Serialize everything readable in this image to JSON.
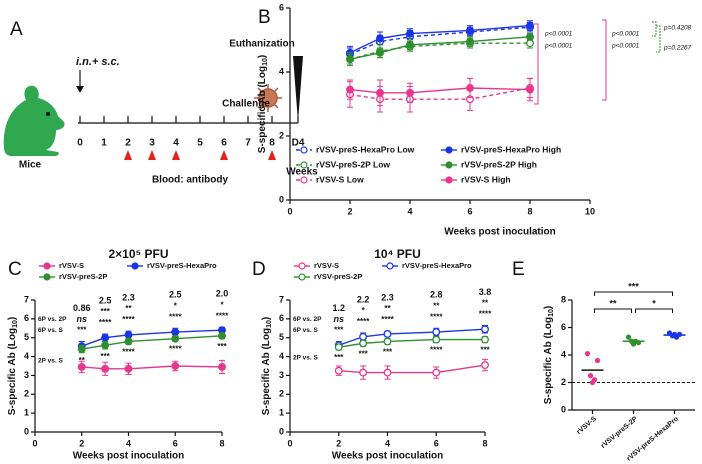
{
  "panels": [
    "A",
    "B",
    "C",
    "D",
    "E"
  ],
  "timeline": {
    "route": "i.n.+ s.c.",
    "subject": "Mice",
    "weeks": [
      "0",
      "1",
      "2",
      "3",
      "4",
      "5",
      "6",
      "7",
      "8",
      "D4"
    ],
    "unit": "Weeks",
    "challenge": "Challenge",
    "end": "Euthanization",
    "blood": "Blood: antibody",
    "blood_draws": [
      2,
      3,
      4,
      6,
      8
    ],
    "draw_color": "#e8201c"
  },
  "chart_data": [
    {
      "type": "line",
      "x_label": "Weeks post inoculation",
      "y_label": [
        {
          "text": "S-specific Ab (Log"
        },
        {
          "text": "10",
          "sub": true
        },
        {
          "text": ")"
        }
      ],
      "x": [
        2,
        3,
        4,
        6,
        8
      ],
      "xlim": [
        0,
        10
      ],
      "xticks": [
        0,
        2,
        4,
        6,
        8,
        10
      ],
      "ylim": [
        0,
        6
      ],
      "yticks": [
        0,
        2,
        4,
        6
      ],
      "legend": "lower left",
      "series": [
        {
          "name": "rVSV-preS-HexaPro Low",
          "color": "#1a35e6",
          "marker": "open",
          "dashed": true,
          "values": [
            4.55,
            4.95,
            5.1,
            5.25,
            5.4
          ],
          "errors": [
            0.2,
            0.2,
            0.2,
            0.15,
            0.15
          ]
        },
        {
          "name": "rVSV-preS-HexaPro High",
          "color": "#1a35e6",
          "marker": "filled",
          "dashed": false,
          "values": [
            4.6,
            5.05,
            5.2,
            5.3,
            5.45
          ],
          "errors": [
            0.2,
            0.2,
            0.15,
            0.15,
            0.15
          ]
        },
        {
          "name": "rVSV-preS-2P Low",
          "color": "#2f8f2f",
          "marker": "open",
          "dashed": true,
          "values": [
            4.4,
            4.65,
            4.8,
            4.9,
            4.9
          ],
          "errors": [
            0.2,
            0.2,
            0.15,
            0.15,
            0.15
          ]
        },
        {
          "name": "rVSV-preS-2P High",
          "color": "#2f8f2f",
          "marker": "filled",
          "dashed": false,
          "values": [
            4.4,
            4.6,
            4.85,
            4.95,
            5.1
          ],
          "errors": [
            0.15,
            0.15,
            0.15,
            0.15,
            0.1
          ]
        },
        {
          "name": "rVSV-S Low",
          "color": "#e8368f",
          "marker": "open",
          "dashed": true,
          "values": [
            3.3,
            3.15,
            3.15,
            3.15,
            3.5
          ],
          "errors": [
            0.4,
            0.4,
            0.4,
            0.35,
            0.3
          ]
        },
        {
          "name": "rVSV-S High",
          "color": "#e8368f",
          "marker": "filled",
          "dashed": false,
          "values": [
            3.45,
            3.35,
            3.35,
            3.5,
            3.45
          ],
          "errors": [
            0.3,
            0.4,
            0.3,
            0.3,
            0.35
          ]
        }
      ],
      "annotations": [
        {
          "text": "p<0.0001",
          "color": "#e8368f"
        },
        {
          "text": "p<0.0001",
          "color": "#e8368f"
        },
        {
          "text": "p<0.0001",
          "color": "#e8368f"
        },
        {
          "text": "p<0.0001",
          "color": "#e8368f"
        },
        {
          "text": "p=0.4208",
          "color": "#2f8f2f"
        },
        {
          "text": "p=0.2267",
          "color": "#2f8f2f"
        }
      ]
    },
    {
      "type": "line",
      "title": "2×10⁵ PFU",
      "x_label": "Weeks post inoculation",
      "y_label": [
        {
          "text": "S-specific Ab (Log"
        },
        {
          "text": "10",
          "sub": true
        },
        {
          "text": ")"
        }
      ],
      "x": [
        2,
        3,
        4,
        6,
        8
      ],
      "xlim": [
        0,
        8
      ],
      "xticks": [
        0,
        2,
        4,
        6,
        8
      ],
      "ylim": [
        0,
        7
      ],
      "yticks": [
        0,
        1,
        2,
        3,
        4,
        5,
        6,
        7
      ],
      "legend": "top",
      "marker": "filled",
      "series": [
        {
          "name": "rVSV-S",
          "color": "#e8368f",
          "values": [
            3.45,
            3.35,
            3.35,
            3.5,
            3.45
          ],
          "errors": [
            0.3,
            0.35,
            0.3,
            0.25,
            0.35
          ]
        },
        {
          "name": "rVSV-preS-HexaPro",
          "color": "#1a35e6",
          "values": [
            4.55,
            5.0,
            5.15,
            5.3,
            5.4
          ],
          "errors": [
            0.25,
            0.2,
            0.2,
            0.2,
            0.15
          ]
        },
        {
          "name": "rVSV-preS-2P",
          "color": "#2f8f2f",
          "values": [
            4.4,
            4.6,
            4.8,
            4.95,
            5.1
          ],
          "errors": [
            0.2,
            0.2,
            0.15,
            0.15,
            0.15
          ]
        }
      ],
      "fold_change": {
        "color": "#7d3c98",
        "values": [
          0.86,
          2.5,
          2.3,
          2.5,
          2
        ],
        "value_labels": [
          "0.86",
          "2.5",
          "2.3",
          "2.5",
          "2.0"
        ]
      },
      "comparisons": [
        {
          "label": "6P vs. 2P",
          "color": "#7d3c98",
          "marks": [
            "ns",
            "***",
            "**",
            "*",
            "*"
          ]
        },
        {
          "label": "6P vs. S",
          "color": "#1a35e6",
          "marks": [
            "***",
            "****",
            "****",
            "****",
            "****"
          ]
        },
        {
          "label": "2P vs. S",
          "color": "#2f8f2f",
          "marks": [
            "**",
            "***",
            "****",
            "****",
            "***"
          ]
        }
      ]
    },
    {
      "type": "line",
      "title": "10⁴ PFU",
      "x_label": "Weeks post inoculation",
      "y_label": [
        {
          "text": "S-specific Ab (Log"
        },
        {
          "text": "10",
          "sub": true
        },
        {
          "text": ")"
        }
      ],
      "x": [
        2,
        3,
        4,
        6,
        8
      ],
      "xlim": [
        0,
        8
      ],
      "xticks": [
        0,
        2,
        4,
        6,
        8
      ],
      "ylim": [
        0,
        7
      ],
      "yticks": [
        0,
        1,
        2,
        3,
        4,
        5,
        6,
        7
      ],
      "legend": "top",
      "marker": "open",
      "series": [
        {
          "name": "rVSV-S",
          "color": "#e8368f",
          "values": [
            3.25,
            3.15,
            3.15,
            3.15,
            3.55
          ],
          "errors": [
            0.25,
            0.35,
            0.35,
            0.3,
            0.3
          ]
        },
        {
          "name": "rVSV-preS-HexaPro",
          "color": "#1a35e6",
          "values": [
            4.6,
            5.05,
            5.2,
            5.3,
            5.45
          ],
          "errors": [
            0.2,
            0.2,
            0.15,
            0.2,
            0.2
          ]
        },
        {
          "name": "rVSV-preS-2P",
          "color": "#2f8f2f",
          "values": [
            4.5,
            4.7,
            4.8,
            4.9,
            4.9
          ],
          "errors": [
            0.15,
            0.15,
            0.15,
            0.15,
            0.15
          ]
        }
      ],
      "fold_change": {
        "color": "#7d3c98",
        "values": [
          1.2,
          2.2,
          2.3,
          2.8,
          3.8
        ]
      },
      "comparisons": [
        {
          "label": "6P vs. 2P",
          "color": "#7d3c98",
          "marks": [
            "ns",
            "*",
            "**",
            "**",
            "**"
          ]
        },
        {
          "label": "6P vs. S",
          "color": "#1a35e6",
          "marks": [
            "***",
            "****",
            "****",
            "****",
            "****"
          ]
        },
        {
          "label": "2P vs. S",
          "color": "#2f8f2f",
          "marks": [
            "***",
            "***",
            "***",
            "****",
            "***"
          ]
        }
      ]
    },
    {
      "type": "dot",
      "y_label": [
        {
          "text": "S-specific Ab (Log"
        },
        {
          "text": "10",
          "sub": true
        },
        {
          "text": ")"
        }
      ],
      "categories": [
        "rVSV-S",
        "rVSV-preS-2P",
        "rVSV-preS-HexaPro"
      ],
      "colors": [
        "#e8368f",
        "#2f8f2f",
        "#1a35e6"
      ],
      "points": [
        [
          4.1,
          3.6,
          2.5,
          2.2,
          2.0
        ],
        [
          5.3,
          4.9,
          5.0,
          5.0,
          4.8
        ],
        [
          5.6,
          5.5,
          5.4,
          5.3,
          5.5
        ]
      ],
      "means": [
        2.9,
        5.0,
        5.45
      ],
      "ylim": [
        0,
        8
      ],
      "yticks": [
        0,
        2,
        4,
        6,
        8
      ],
      "reference_line": 2,
      "comparisons": [
        {
          "pair": [
            0,
            1
          ],
          "label": "**"
        },
        {
          "pair": [
            0,
            2
          ],
          "label": "***"
        },
        {
          "pair": [
            1,
            2
          ],
          "label": "*"
        }
      ]
    }
  ]
}
